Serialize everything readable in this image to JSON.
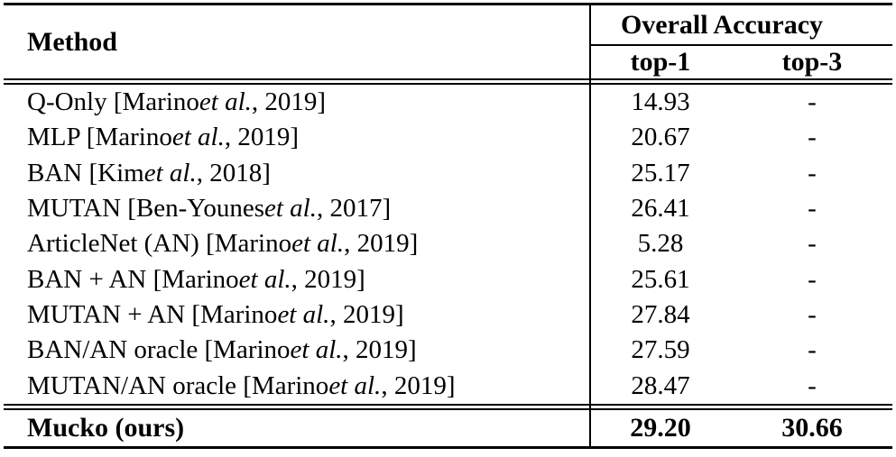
{
  "page": {
    "background": "#ffffff",
    "text_color": "#000000"
  },
  "table": {
    "header": {
      "method_label": "Method",
      "group_label": "Overall Accuracy",
      "col1": "top-1",
      "col2": "top-3"
    },
    "rows": [
      {
        "prefix": "Q-Only [Marino ",
        "etal": "et al.",
        "suffix": ", 2019]",
        "top1": "14.93",
        "top3": "-"
      },
      {
        "prefix": "MLP [Marino ",
        "etal": "et al.",
        "suffix": ", 2019]",
        "top1": "20.67",
        "top3": "-"
      },
      {
        "prefix": "BAN [Kim ",
        "etal": "et al.",
        "suffix": ", 2018]",
        "top1": "25.17",
        "top3": "-"
      },
      {
        "prefix": "MUTAN [Ben-Younes ",
        "etal": "et al.",
        "suffix": ", 2017]",
        "top1": "26.41",
        "top3": "-"
      },
      {
        "prefix": "ArticleNet (AN) [Marino ",
        "etal": "et al.",
        "suffix": ", 2019]",
        "top1": "5.28",
        "top3": "-"
      },
      {
        "prefix": "BAN + AN [Marino ",
        "etal": "et al.",
        "suffix": ", 2019]",
        "top1": "25.61",
        "top3": "-"
      },
      {
        "prefix": "MUTAN + AN [Marino ",
        "etal": "et al.",
        "suffix": ", 2019]",
        "top1": "27.84",
        "top3": "-"
      },
      {
        "prefix": "BAN/AN oracle [Marino ",
        "etal": "et al.",
        "suffix": ", 2019]",
        "top1": "27.59",
        "top3": "-"
      },
      {
        "prefix": "MUTAN/AN oracle [Marino ",
        "etal": "et al.",
        "suffix": ", 2019]",
        "top1": "28.47",
        "top3": "-"
      }
    ],
    "final_row": {
      "method": "Mucko (ours)",
      "top1": "29.20",
      "top3": "30.66"
    }
  },
  "chart_data": {
    "type": "table",
    "title": "Overall Accuracy",
    "columns": [
      "Method",
      "top-1",
      "top-3"
    ],
    "rows": [
      [
        "Q-Only [Marino et al., 2019]",
        14.93,
        "-"
      ],
      [
        "MLP [Marino et al., 2019]",
        20.67,
        "-"
      ],
      [
        "BAN [Kim et al., 2018]",
        25.17,
        "-"
      ],
      [
        "MUTAN [Ben-Younes et al., 2017]",
        26.41,
        "-"
      ],
      [
        "ArticleNet (AN) [Marino et al., 2019]",
        5.28,
        "-"
      ],
      [
        "BAN + AN [Marino et al., 2019]",
        25.61,
        "-"
      ],
      [
        "MUTAN + AN [Marino et al., 2019]",
        27.84,
        "-"
      ],
      [
        "BAN/AN oracle [Marino et al., 2019]",
        27.59,
        "-"
      ],
      [
        "MUTAN/AN oracle [Marino et al., 2019]",
        28.47,
        "-"
      ],
      [
        "Mucko (ours)",
        29.2,
        30.66
      ]
    ]
  }
}
